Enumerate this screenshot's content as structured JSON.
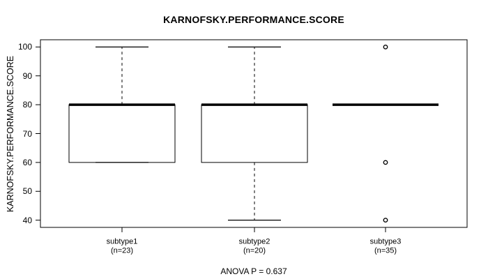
{
  "colors": {
    "foreground": "#000000",
    "background": "#ffffff"
  },
  "chart_data": {
    "type": "boxplot",
    "title": "KARNOFSKY.PERFORMANCE.SCORE",
    "ylabel": "KARNOFSKY.PERFORMANCE.SCORE",
    "xlabel": "",
    "yticks": [
      40,
      50,
      60,
      70,
      80,
      90,
      100
    ],
    "ylim": [
      37.5,
      102.5
    ],
    "grid": false,
    "legend": false,
    "annotation": "ANOVA P = 0.637",
    "groups": [
      {
        "label": "subtype1",
        "sublabel": "(n=23)",
        "n": 23,
        "median": 80,
        "q1": 60,
        "q3": 80,
        "whisker_low": 60,
        "whisker_high": 100,
        "outliers": []
      },
      {
        "label": "subtype2",
        "sublabel": "(n=20)",
        "n": 20,
        "median": 80,
        "q1": 60,
        "q3": 80,
        "whisker_low": 40,
        "whisker_high": 100,
        "outliers": []
      },
      {
        "label": "subtype3",
        "sublabel": "(n=35)",
        "n": 35,
        "median": 80,
        "q1": 80,
        "q3": 80,
        "whisker_low": 80,
        "whisker_high": 80,
        "outliers": [
          100,
          60,
          40
        ]
      }
    ]
  }
}
